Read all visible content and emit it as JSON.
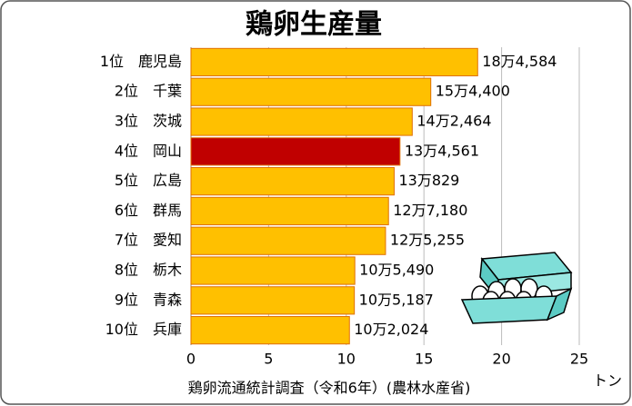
{
  "chart_data": {
    "type": "barh",
    "title": "鶏卵生産量",
    "categories": [
      "1位　鹿児島",
      "2位　千葉",
      "3位　茨城",
      "4位　岡山",
      "5位　広島",
      "6位　群馬",
      "7位　愛知",
      "8位　栃木",
      "9位　青森",
      "10位　兵庫"
    ],
    "values": [
      18.4584,
      15.44,
      14.2464,
      13.4561,
      13.0829,
      12.718,
      12.5255,
      10.549,
      10.5187,
      10.2024
    ],
    "value_labels": [
      "18万4,584",
      "15万4,400",
      "14万2,464",
      "13万4,561",
      "13万829",
      "12万7,180",
      "12万5,255",
      "10万5,490",
      "10万5,187",
      "10万2,024"
    ],
    "colors": [
      "#ffc000",
      "#ffc000",
      "#ffc000",
      "#c00000",
      "#ffc000",
      "#ffc000",
      "#ffc000",
      "#ffc000",
      "#ffc000",
      "#ffc000"
    ],
    "xlim": [
      0,
      25
    ],
    "xticks": [
      0,
      5,
      10,
      15,
      20,
      25
    ],
    "grid": true,
    "x_unit": "トン",
    "source": "鶏卵流通統計調査（令和6年）(農林水産省)"
  }
}
